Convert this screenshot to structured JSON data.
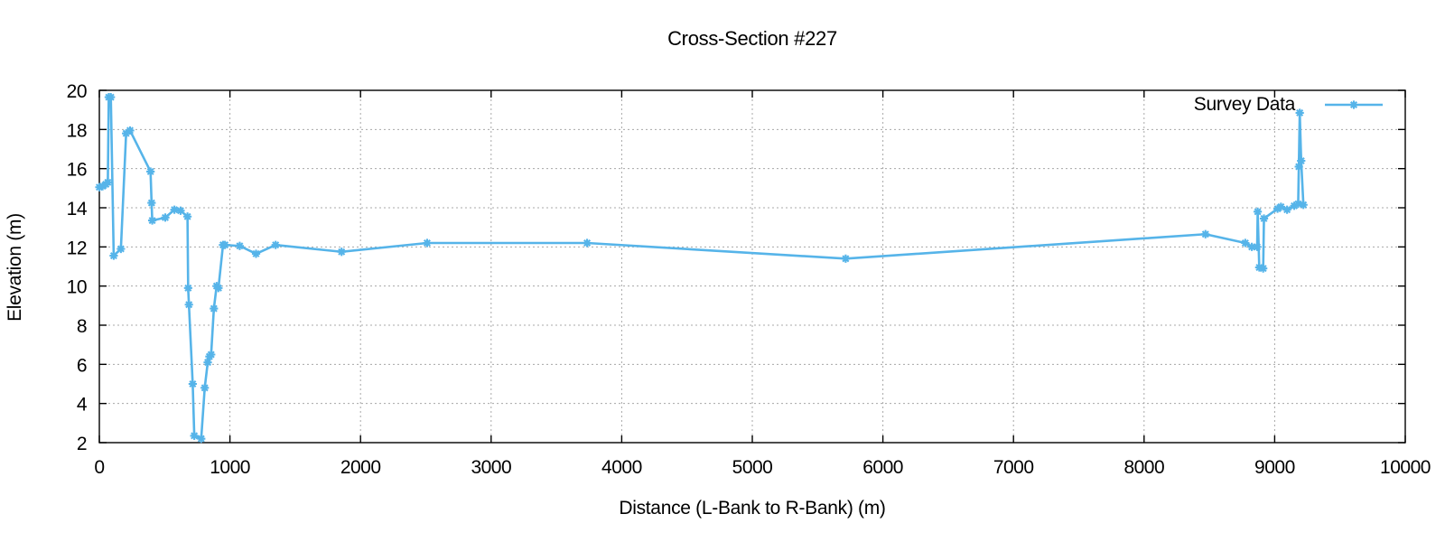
{
  "chart": {
    "title": "Cross-Section #227",
    "x_axis": {
      "label": "Distance (L-Bank to R-Bank) (m)"
    },
    "y_axis": {
      "label": "Elevation (m)"
    },
    "legend": {
      "label": "Survey Data"
    }
  },
  "colors": {
    "series": "#56b4e9",
    "grid": "#a8a8a8",
    "frame": "#000000",
    "text": "#000000",
    "background": "#ffffff"
  },
  "chart_data": {
    "type": "line",
    "title": "Cross-Section #227",
    "xlabel": "Distance (L-Bank to R-Bank) (m)",
    "ylabel": "Elevation (m)",
    "xlim": [
      0,
      10000
    ],
    "ylim": [
      2,
      20
    ],
    "x_ticks": [
      0,
      1000,
      2000,
      3000,
      4000,
      5000,
      6000,
      7000,
      8000,
      9000,
      10000
    ],
    "y_ticks": [
      2,
      4,
      6,
      8,
      10,
      12,
      14,
      16,
      18,
      20
    ],
    "grid": true,
    "legend_position": "top-right-inside",
    "series": [
      {
        "name": "Survey Data",
        "marker": "asterisk",
        "points": [
          [
            0,
            15.05
          ],
          [
            25,
            15.1
          ],
          [
            50,
            15.2
          ],
          [
            65,
            15.3
          ],
          [
            72,
            19.65
          ],
          [
            88,
            19.65
          ],
          [
            110,
            11.55
          ],
          [
            165,
            11.9
          ],
          [
            205,
            17.8
          ],
          [
            235,
            17.95
          ],
          [
            392,
            15.85
          ],
          [
            400,
            14.25
          ],
          [
            405,
            13.35
          ],
          [
            505,
            13.5
          ],
          [
            575,
            13.9
          ],
          [
            622,
            13.85
          ],
          [
            675,
            13.55
          ],
          [
            680,
            9.9
          ],
          [
            686,
            9.05
          ],
          [
            715,
            5.0
          ],
          [
            727,
            2.35
          ],
          [
            780,
            2.2
          ],
          [
            807,
            4.8
          ],
          [
            830,
            6.1
          ],
          [
            843,
            6.4
          ],
          [
            856,
            6.5
          ],
          [
            877,
            8.85
          ],
          [
            898,
            10.0
          ],
          [
            912,
            9.9
          ],
          [
            947,
            12.1
          ],
          [
            962,
            12.1
          ],
          [
            1075,
            12.05
          ],
          [
            1200,
            11.65
          ],
          [
            1350,
            12.1
          ],
          [
            1855,
            11.75
          ],
          [
            2510,
            12.2
          ],
          [
            3735,
            12.2
          ],
          [
            5715,
            11.4
          ],
          [
            8470,
            12.65
          ],
          [
            8775,
            12.2
          ],
          [
            8825,
            12.0
          ],
          [
            8866,
            12.0
          ],
          [
            8870,
            13.8
          ],
          [
            8882,
            10.95
          ],
          [
            8912,
            10.9
          ],
          [
            8918,
            13.45
          ],
          [
            9022,
            13.95
          ],
          [
            9048,
            14.05
          ],
          [
            9095,
            13.9
          ],
          [
            9150,
            14.1
          ],
          [
            9180,
            14.2
          ],
          [
            9185,
            16.1
          ],
          [
            9192,
            18.85
          ],
          [
            9203,
            16.4
          ],
          [
            9220,
            14.15
          ]
        ]
      }
    ]
  }
}
